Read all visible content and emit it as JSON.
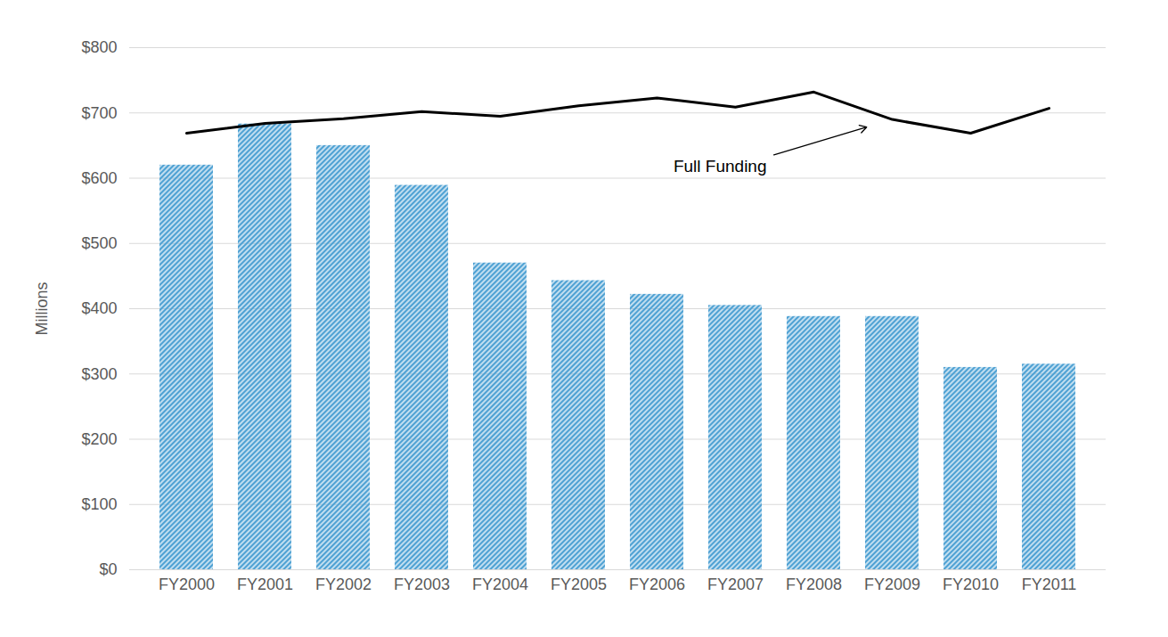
{
  "chart_data": {
    "type": "bar",
    "categories": [
      "FY2000",
      "FY2001",
      "FY2002",
      "FY2003",
      "FY2004",
      "FY2005",
      "FY2006",
      "FY2007",
      "FY2008",
      "FY2009",
      "FY2010",
      "FY2011"
    ],
    "series": [
      {
        "type": "bar",
        "color": "#4ea1d3",
        "values": [
          620,
          683,
          650,
          589,
          470,
          443,
          422,
          405,
          388,
          388,
          310,
          315
        ]
      },
      {
        "name": "Full Funding",
        "type": "line",
        "color": "#000000",
        "values": [
          669,
          684,
          691,
          702,
          695,
          711,
          723,
          709,
          732,
          690,
          669,
          707
        ]
      }
    ],
    "y_label": "Millions",
    "ylim": [
      0,
      800
    ],
    "yticks": [
      {
        "value": 0,
        "label": "$0"
      },
      {
        "value": 100,
        "label": "$100"
      },
      {
        "value": 200,
        "label": "$200"
      },
      {
        "value": 300,
        "label": "$300"
      },
      {
        "value": 400,
        "label": "$400"
      },
      {
        "value": 500,
        "label": "$500"
      },
      {
        "value": 600,
        "label": "$600"
      },
      {
        "value": 700,
        "label": "$700"
      },
      {
        "value": 800,
        "label": "$800"
      }
    ],
    "grid": true
  }
}
